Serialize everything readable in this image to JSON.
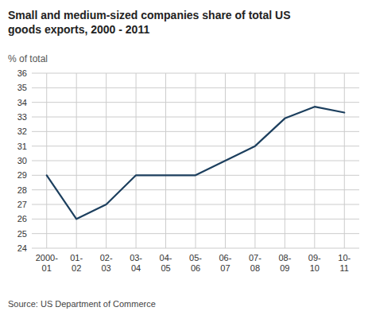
{
  "chart_data": {
    "type": "line",
    "title": "Small and medium-sized companies share of total US\ngoods exports, 2000 - 2011",
    "y_label": "% of total",
    "source": "Source: US Department of Commerce",
    "categories": [
      "2000-\n01",
      "01-\n02",
      "02-\n03",
      "03-\n04",
      "04-\n05",
      "05-\n06",
      "06-\n07",
      "07-\n08",
      "08-\n09",
      "09-\n10",
      "10-\n11"
    ],
    "values": [
      29.0,
      26.0,
      27.0,
      29.0,
      29.0,
      29.0,
      30.0,
      31.0,
      32.9,
      33.7,
      33.3
    ],
    "color": "#1c3f5e",
    "ylim": [
      24,
      36
    ],
    "yticks": [
      24,
      25,
      26,
      27,
      28,
      29,
      30,
      31,
      32,
      33,
      34,
      35,
      36
    ],
    "grid": true
  }
}
